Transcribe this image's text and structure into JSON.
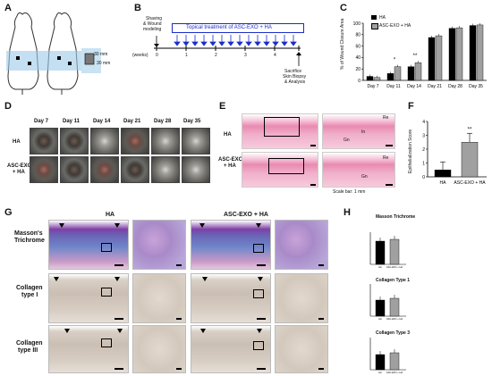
{
  "panels": {
    "A": "A",
    "B": "B",
    "C": "C",
    "D": "D",
    "E": "E",
    "F": "F",
    "G": "G",
    "H": "H"
  },
  "panel_a": {
    "dim1": "30 mm",
    "dim2": "30 mm"
  },
  "panel_b": {
    "shaving": "Shaving",
    "wound": "& Wound",
    "modeling": "modeling",
    "treatment": "Topical treatment of ASC-EXO + HA",
    "weeks": "(weeks)",
    "ticks": [
      "0",
      "1",
      "2",
      "3",
      "4",
      "5"
    ],
    "sacrifice": "Sacrifice",
    "skin_biopsy": "Skin Biopsy",
    "analysis": "& Analysis"
  },
  "panel_c": {
    "ylabel": "% of Wound Closure Area",
    "legend": [
      "HA",
      "ASC-EXO + HA"
    ],
    "yticks": [
      "0",
      "20",
      "40",
      "60",
      "80",
      "100"
    ],
    "sig": [
      "*",
      "**"
    ]
  },
  "chart_data": [
    {
      "type": "bar",
      "categories": [
        "Day 7",
        "Day 11",
        "Day 14",
        "Day 21",
        "Day 28",
        "Day 35"
      ],
      "series": [
        {
          "name": "HA",
          "values": [
            7,
            12,
            24,
            75,
            91,
            96
          ]
        },
        {
          "name": "ASC-EXO + HA",
          "values": [
            5,
            24,
            31,
            78,
            92,
            97
          ]
        }
      ],
      "ylabel": "% of Wound Closure Area",
      "ylim": [
        0,
        100
      ],
      "legend": "top-left"
    },
    {
      "type": "bar",
      "categories": [
        "HA",
        "ASC-EXO + HA"
      ],
      "values": [
        0.5,
        2.5
      ],
      "ylabel": "Epithelialization Score",
      "ylim": [
        0,
        4
      ],
      "annotation": "**"
    }
  ],
  "panel_d": {
    "days": [
      "Day 7",
      "Day 11",
      "Day 14",
      "Day 21",
      "Day 28",
      "Day 35"
    ],
    "rows": [
      "HA",
      "ASC-EXO",
      "+ HA"
    ]
  },
  "panel_e": {
    "rows": [
      "HA",
      "ASC-EXO",
      "+ HA"
    ],
    "re": "Re",
    "gn": "Gn",
    "in": "In",
    "scale": "Scale bar: 1 mm"
  },
  "panel_f": {
    "ylabel": "Epithelialization Score",
    "yticks": [
      "0",
      "1",
      "2",
      "3",
      "4"
    ],
    "cats": [
      "HA",
      "ASC-EXO + HA"
    ],
    "sig": "**"
  },
  "panel_g": {
    "cols": [
      "HA",
      "ASC-EXO + HA"
    ],
    "rows": [
      "Masson's",
      "Trichrome",
      "Collagen",
      "type I",
      "Collagen",
      "type III"
    ]
  },
  "panel_h": {
    "titles": [
      "Masson Trichrome",
      "Collagen Type 1",
      "Collagen Type 3"
    ],
    "cats": [
      "HA",
      "ASC-EXO + HA"
    ]
  },
  "colors": {
    "treatment_text": "#1d2cc9",
    "arrow": "#1d2cc9",
    "bar_ha": "#000000",
    "bar_exo": "#a0a0a0"
  }
}
